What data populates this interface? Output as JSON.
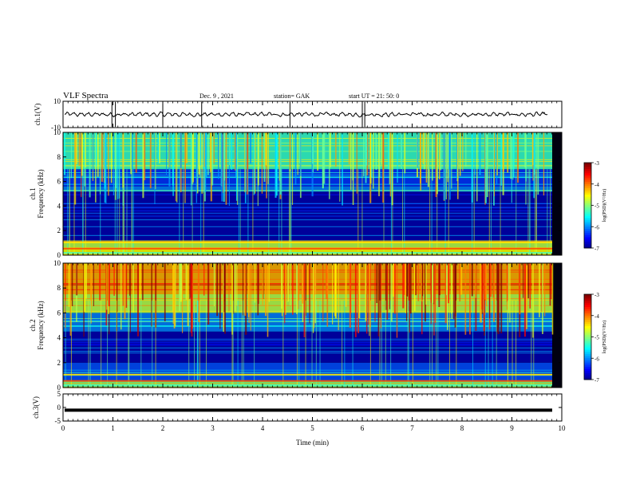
{
  "header": {
    "title": "VLF Spectra",
    "date": "Dec. 9 , 2021",
    "station": "station= GAK",
    "start_ut": "start UT = 21: 50: 0"
  },
  "chart_data": [
    {
      "type": "line",
      "panel": "ch1-waveform",
      "ylabel": "ch.1(V)",
      "ylim": [
        -10,
        10
      ],
      "ytick_labels": [
        "10",
        "-10"
      ],
      "xlim": [
        0,
        10
      ],
      "description_values": "waveform oscillating approximately between -2 and 2 V"
    },
    {
      "type": "heatmap",
      "panel": "ch1-spectrogram",
      "ylabel_line1": "ch.1",
      "ylabel_line2": "Frequency (kHz)",
      "ylim": [
        0,
        10
      ],
      "ytick_labels": [
        "0",
        "2",
        "4",
        "6",
        "8",
        "10"
      ],
      "xlim": [
        0,
        10
      ],
      "colorbar": {
        "label": "log(PSD)(V²/Hz)",
        "range": [
          -7,
          -3
        ],
        "tick_labels": [
          "-3",
          "-4",
          "-5",
          "-6",
          "-7"
        ]
      },
      "bands": [
        {
          "fmin": 0,
          "fmax": 0.5,
          "level": -4.5
        },
        {
          "fmin": 0.5,
          "fmax": 1.2,
          "level": -4.8
        },
        {
          "fmin": 1.2,
          "fmax": 5.2,
          "level": -6.8
        },
        {
          "fmin": 5.2,
          "fmax": 5.6,
          "level": -6.0
        },
        {
          "fmin": 5.6,
          "fmax": 7.0,
          "level": -6.3
        },
        {
          "fmin": 7.0,
          "fmax": 10,
          "level": -5.3
        }
      ]
    },
    {
      "type": "heatmap",
      "panel": "ch2-spectrogram",
      "ylabel_line1": "ch.2",
      "ylabel_line2": "Frequency (kHz)",
      "ylim": [
        0,
        10
      ],
      "ytick_labels": [
        "0",
        "2",
        "4",
        "6",
        "8",
        "10"
      ],
      "xlim": [
        0,
        10
      ],
      "colorbar": {
        "label": "log(PSD)(V²/Hz)",
        "range": [
          -7,
          -3
        ],
        "tick_labels": [
          "-3",
          "-4",
          "-5",
          "-6",
          "-7"
        ]
      },
      "bands": [
        {
          "fmin": 0,
          "fmax": 0.5,
          "level": -5.0
        },
        {
          "fmin": 0.5,
          "fmax": 2.0,
          "level": -6.2
        },
        {
          "fmin": 2.0,
          "fmax": 4.5,
          "level": -6.8
        },
        {
          "fmin": 4.5,
          "fmax": 6.0,
          "level": -6.0
        },
        {
          "fmin": 6.0,
          "fmax": 7.5,
          "level": -4.8
        },
        {
          "fmin": 7.5,
          "fmax": 10,
          "level": -4.2
        }
      ]
    },
    {
      "type": "line",
      "panel": "ch3-waveform",
      "ylabel": "ch.3(V)",
      "ylim": [
        -5,
        5
      ],
      "ytick_labels": [
        "5",
        "0",
        "-5"
      ],
      "xlim": [
        0,
        10
      ],
      "xlabel": "Time (min)",
      "xtick_labels": [
        "0",
        "1",
        "2",
        "3",
        "4",
        "5",
        "6",
        "7",
        "8",
        "9",
        "10"
      ],
      "constant_value": -1
    }
  ]
}
